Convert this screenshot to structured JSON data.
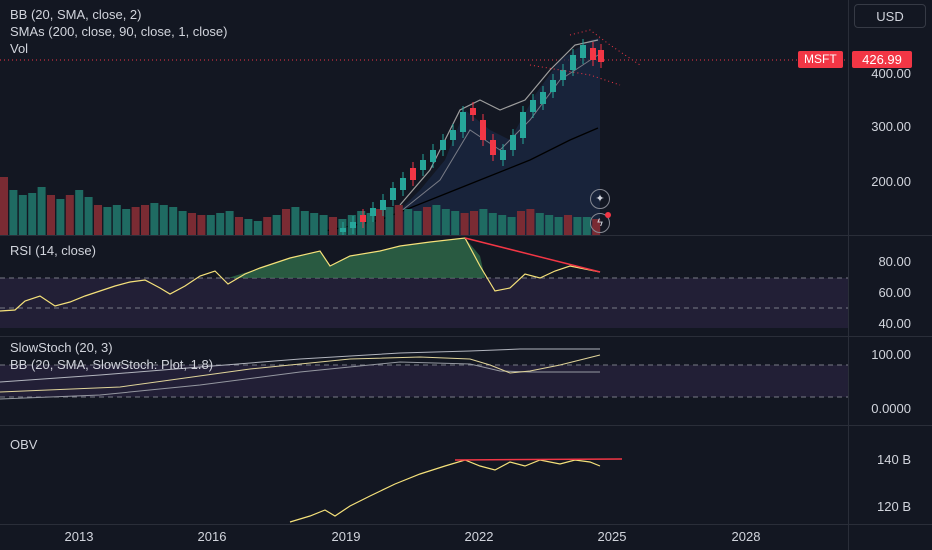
{
  "chart_data": [
    {
      "type": "candlestick",
      "symbol": "MSFT",
      "last_price": "426.99",
      "currency": "USD",
      "indicators": [
        "BB (20, SMA, close, 2)",
        "SMAs (200, close, 90, close, 1, close)",
        "Vol"
      ],
      "y_ticks": [
        "400.00",
        "300.00",
        "200.00"
      ],
      "x_ticks": [
        "2013",
        "2016",
        "2019",
        "2022",
        "2025",
        "2028"
      ],
      "colors": {
        "up": "#26a69a",
        "down": "#f23645",
        "volume_up": "#1f6b62",
        "volume_down": "#7a2b33"
      }
    },
    {
      "type": "line",
      "title": "RSI (14, close)",
      "y_ticks": [
        "80.00",
        "60.00",
        "40.00"
      ],
      "color": "#f5e17a"
    },
    {
      "type": "line",
      "title": "SlowStoch (20, 3)",
      "overlay": "BB (20, SMA, SlowStoch: Plot, 1.8)",
      "y_ticks": [
        "100.00",
        "0.0000"
      ]
    },
    {
      "type": "line",
      "title": "OBV",
      "y_ticks": [
        "140 B",
        "120 B"
      ],
      "color": "#f5e17a"
    }
  ],
  "header": {
    "currency_button": "USD",
    "symbol_tag": "MSFT",
    "price_tag": "426.99"
  }
}
